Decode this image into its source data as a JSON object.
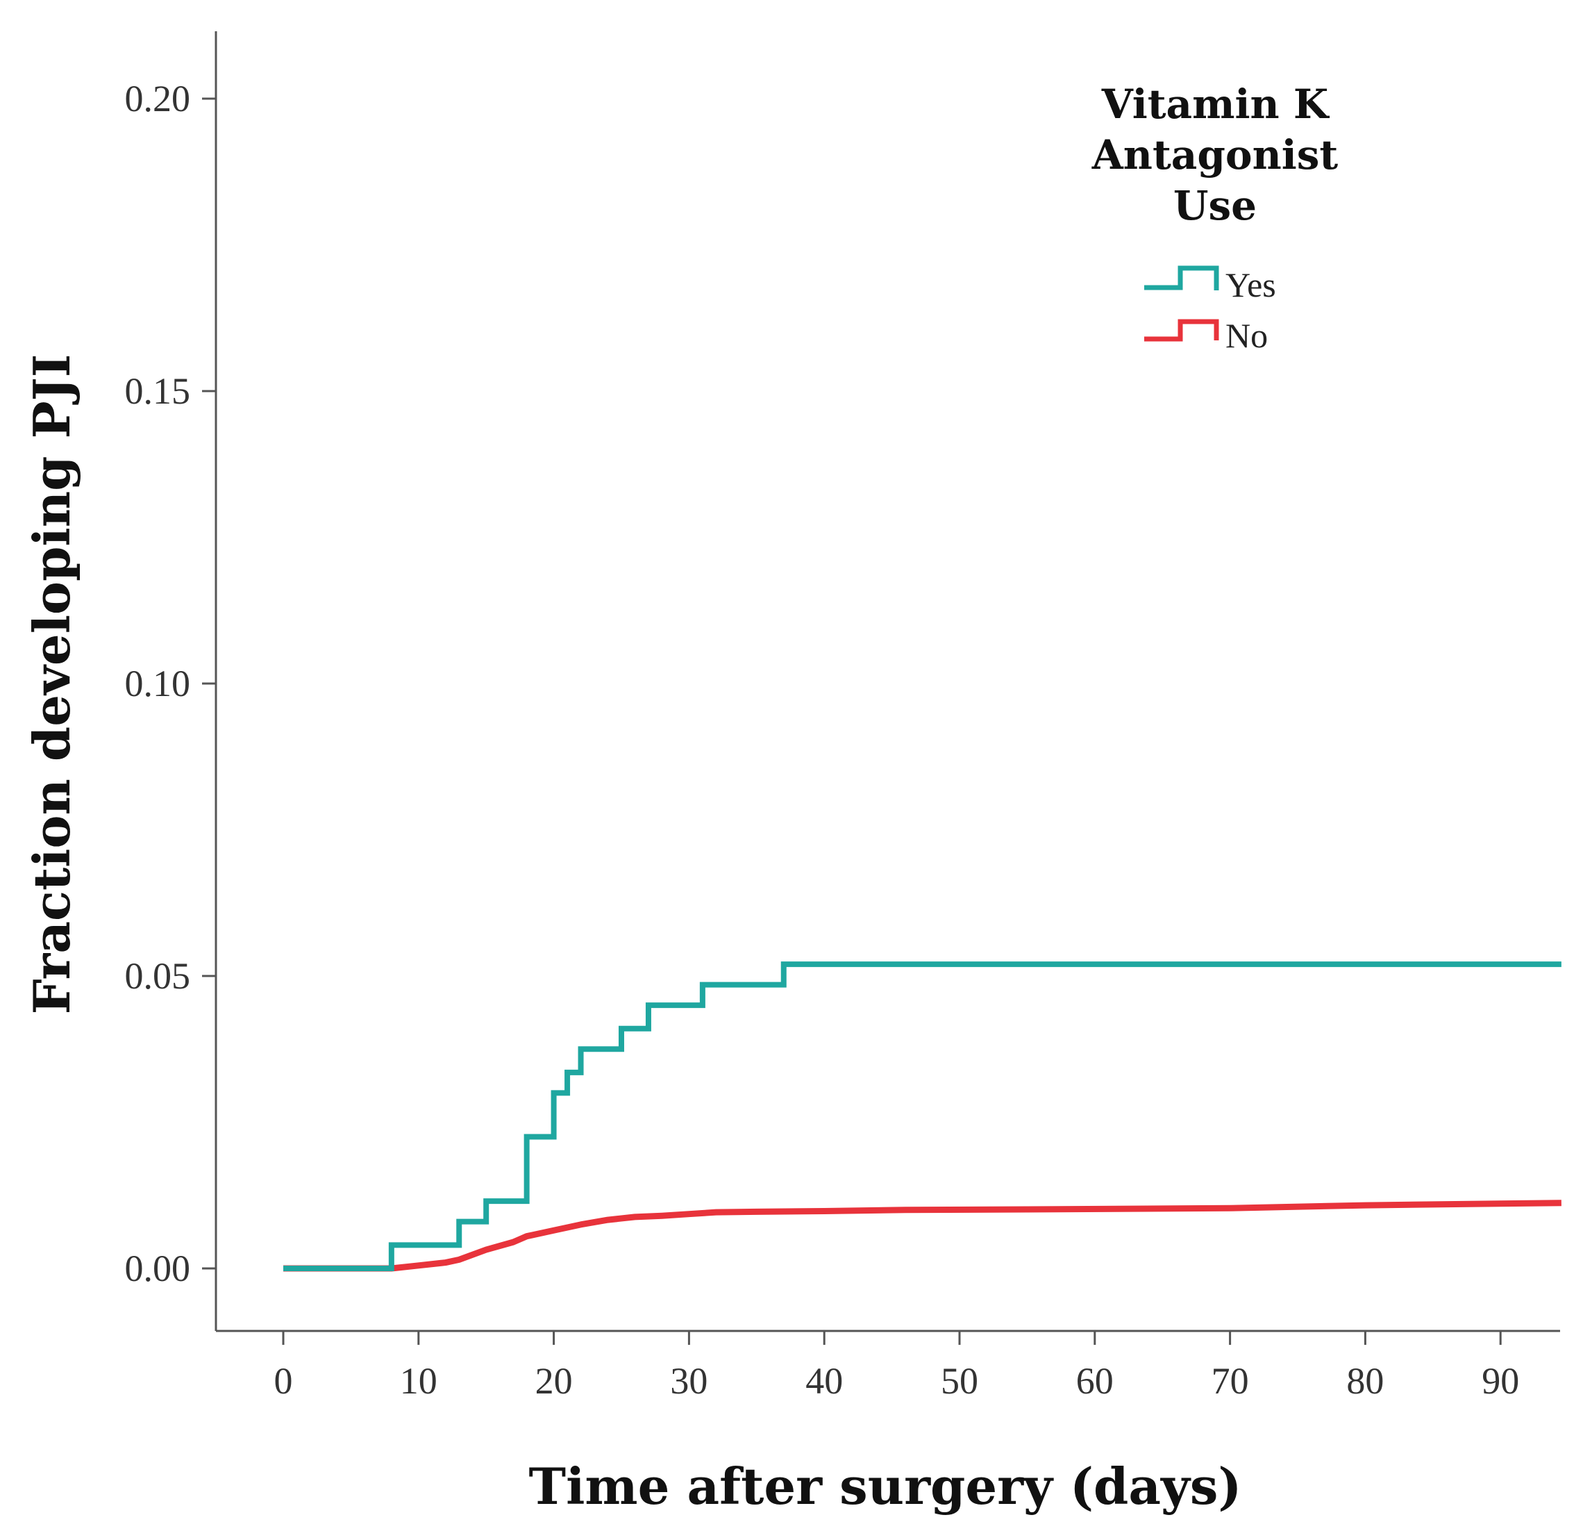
{
  "chart_data": {
    "type": "line",
    "style": "step",
    "title": "",
    "xlabel": "Time after surgery (days)",
    "ylabel": "Fraction developing PJI",
    "xlim": [
      -5,
      95
    ],
    "ylim": [
      -0.011,
      0.211
    ],
    "xticks": [
      0,
      10,
      20,
      30,
      40,
      50,
      60,
      70,
      80,
      90
    ],
    "yticks": [
      0.0,
      0.05,
      0.1,
      0.15,
      0.2
    ],
    "xtick_labels": [
      "0",
      "10",
      "20",
      "30",
      "40",
      "50",
      "60",
      "70",
      "80",
      "90"
    ],
    "ytick_labels": [
      "0.00",
      "0.05",
      "0.10",
      "0.15",
      "0.20"
    ],
    "grid": false,
    "legend": {
      "title": [
        "Vitamin K",
        "Antagonist",
        "Use"
      ],
      "position": "top-right"
    },
    "series": [
      {
        "name": "Yes",
        "color": "#1fa7a0",
        "step": true,
        "x": [
          0,
          8,
          13,
          15,
          18,
          20,
          21,
          22,
          25,
          27,
          31,
          37,
          94.5
        ],
        "y": [
          0.0,
          0.004,
          0.008,
          0.0115,
          0.0225,
          0.03,
          0.0335,
          0.0375,
          0.041,
          0.045,
          0.0485,
          0.052,
          0.052
        ]
      },
      {
        "name": "No",
        "color": "#e8333b",
        "step": false,
        "x": [
          0,
          8,
          10,
          12,
          13,
          15,
          17,
          18,
          20,
          22,
          24,
          26,
          28,
          30,
          32,
          35,
          40,
          46,
          55,
          70,
          80,
          94.5
        ],
        "y": [
          0.0,
          0.0,
          0.0005,
          0.001,
          0.0015,
          0.0032,
          0.0045,
          0.0055,
          0.0065,
          0.0075,
          0.0083,
          0.0088,
          0.009,
          0.0093,
          0.0096,
          0.0097,
          0.0098,
          0.01,
          0.0101,
          0.0103,
          0.0108,
          0.0112
        ]
      }
    ]
  }
}
